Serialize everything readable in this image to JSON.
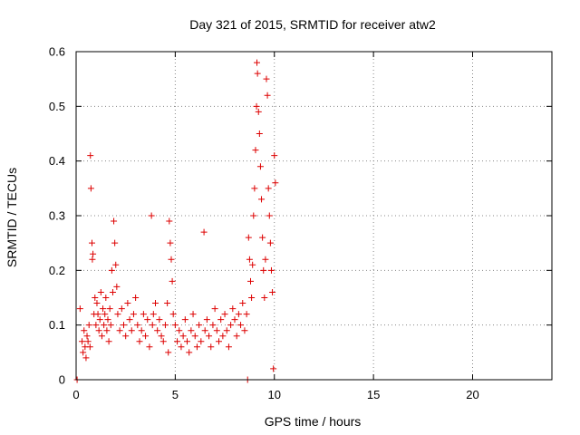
{
  "chart_data": {
    "type": "scatter",
    "title": "Day 321 of 2015, SRMTID for receiver atw2",
    "xlabel": "GPS time / hours",
    "ylabel": "SRMTID / TECUs",
    "xlim": [
      0,
      24
    ],
    "ylim": [
      0,
      0.6
    ],
    "x_ticks": [
      0,
      5,
      10,
      15,
      20
    ],
    "y_ticks": [
      0,
      0.1,
      0.2,
      0.3,
      0.4,
      0.5,
      0.6
    ],
    "x_tick_labels": [
      "0",
      "5",
      "10",
      "15",
      "20"
    ],
    "y_tick_labels": [
      "0",
      "0.1",
      "0.2",
      "0.3",
      "0.4",
      "0.5",
      "0.6"
    ],
    "grid": true,
    "marker": "+",
    "colors": {
      "series": "#dd0000",
      "grid": "#888888",
      "axis": "#000000"
    },
    "series": [
      {
        "name": "SRMTID",
        "points": [
          [
            0.05,
            0.0
          ],
          [
            0.2,
            0.13
          ],
          [
            0.3,
            0.07
          ],
          [
            0.35,
            0.05
          ],
          [
            0.4,
            0.09
          ],
          [
            0.45,
            0.06
          ],
          [
            0.5,
            0.04
          ],
          [
            0.55,
            0.08
          ],
          [
            0.6,
            0.07
          ],
          [
            0.65,
            0.1
          ],
          [
            0.7,
            0.06
          ],
          [
            0.72,
            0.41
          ],
          [
            0.75,
            0.35
          ],
          [
            0.8,
            0.25
          ],
          [
            0.82,
            0.22
          ],
          [
            0.85,
            0.23
          ],
          [
            0.9,
            0.12
          ],
          [
            0.95,
            0.15
          ],
          [
            1.0,
            0.1
          ],
          [
            1.05,
            0.14
          ],
          [
            1.1,
            0.12
          ],
          [
            1.15,
            0.09
          ],
          [
            1.2,
            0.11
          ],
          [
            1.25,
            0.16
          ],
          [
            1.3,
            0.08
          ],
          [
            1.35,
            0.13
          ],
          [
            1.4,
            0.1
          ],
          [
            1.45,
            0.12
          ],
          [
            1.5,
            0.15
          ],
          [
            1.55,
            0.09
          ],
          [
            1.6,
            0.11
          ],
          [
            1.65,
            0.07
          ],
          [
            1.7,
            0.13
          ],
          [
            1.75,
            0.1
          ],
          [
            1.8,
            0.2
          ],
          [
            1.85,
            0.16
          ],
          [
            1.9,
            0.29
          ],
          [
            1.95,
            0.25
          ],
          [
            2.0,
            0.21
          ],
          [
            2.05,
            0.17
          ],
          [
            2.1,
            0.12
          ],
          [
            2.2,
            0.09
          ],
          [
            2.3,
            0.13
          ],
          [
            2.4,
            0.1
          ],
          [
            2.5,
            0.08
          ],
          [
            2.6,
            0.14
          ],
          [
            2.7,
            0.11
          ],
          [
            2.8,
            0.09
          ],
          [
            2.9,
            0.12
          ],
          [
            3.0,
            0.15
          ],
          [
            3.1,
            0.1
          ],
          [
            3.2,
            0.07
          ],
          [
            3.3,
            0.09
          ],
          [
            3.4,
            0.12
          ],
          [
            3.5,
            0.08
          ],
          [
            3.6,
            0.11
          ],
          [
            3.7,
            0.06
          ],
          [
            3.8,
            0.3
          ],
          [
            3.85,
            0.1
          ],
          [
            3.9,
            0.12
          ],
          [
            4.0,
            0.14
          ],
          [
            4.1,
            0.09
          ],
          [
            4.2,
            0.11
          ],
          [
            4.3,
            0.08
          ],
          [
            4.4,
            0.07
          ],
          [
            4.5,
            0.1
          ],
          [
            4.6,
            0.14
          ],
          [
            4.65,
            0.05
          ],
          [
            4.7,
            0.29
          ],
          [
            4.75,
            0.25
          ],
          [
            4.8,
            0.22
          ],
          [
            4.85,
            0.18
          ],
          [
            4.9,
            0.12
          ],
          [
            5.0,
            0.1
          ],
          [
            5.1,
            0.07
          ],
          [
            5.2,
            0.09
          ],
          [
            5.3,
            0.06
          ],
          [
            5.4,
            0.08
          ],
          [
            5.5,
            0.11
          ],
          [
            5.6,
            0.07
          ],
          [
            5.7,
            0.05
          ],
          [
            5.8,
            0.09
          ],
          [
            5.9,
            0.12
          ],
          [
            6.0,
            0.08
          ],
          [
            6.1,
            0.06
          ],
          [
            6.2,
            0.1
          ],
          [
            6.3,
            0.07
          ],
          [
            6.45,
            0.27
          ],
          [
            6.5,
            0.09
          ],
          [
            6.6,
            0.11
          ],
          [
            6.7,
            0.08
          ],
          [
            6.8,
            0.06
          ],
          [
            6.9,
            0.1
          ],
          [
            7.0,
            0.13
          ],
          [
            7.1,
            0.09
          ],
          [
            7.2,
            0.07
          ],
          [
            7.3,
            0.11
          ],
          [
            7.4,
            0.08
          ],
          [
            7.5,
            0.12
          ],
          [
            7.6,
            0.09
          ],
          [
            7.7,
            0.06
          ],
          [
            7.8,
            0.1
          ],
          [
            7.9,
            0.13
          ],
          [
            8.0,
            0.11
          ],
          [
            8.1,
            0.08
          ],
          [
            8.2,
            0.12
          ],
          [
            8.3,
            0.1
          ],
          [
            8.4,
            0.14
          ],
          [
            8.5,
            0.09
          ],
          [
            8.6,
            0.12
          ],
          [
            8.65,
            0.0
          ],
          [
            8.7,
            0.26
          ],
          [
            8.75,
            0.22
          ],
          [
            8.8,
            0.18
          ],
          [
            8.85,
            0.15
          ],
          [
            8.9,
            0.21
          ],
          [
            8.95,
            0.3
          ],
          [
            9.0,
            0.35
          ],
          [
            9.05,
            0.42
          ],
          [
            9.1,
            0.5
          ],
          [
            9.12,
            0.58
          ],
          [
            9.15,
            0.56
          ],
          [
            9.2,
            0.49
          ],
          [
            9.25,
            0.45
          ],
          [
            9.3,
            0.39
          ],
          [
            9.35,
            0.33
          ],
          [
            9.4,
            0.26
          ],
          [
            9.45,
            0.2
          ],
          [
            9.5,
            0.15
          ],
          [
            9.55,
            0.22
          ],
          [
            9.6,
            0.55
          ],
          [
            9.65,
            0.52
          ],
          [
            9.7,
            0.35
          ],
          [
            9.75,
            0.3
          ],
          [
            9.8,
            0.25
          ],
          [
            9.85,
            0.2
          ],
          [
            9.9,
            0.16
          ],
          [
            9.95,
            0.02
          ],
          [
            10.0,
            0.41
          ],
          [
            10.05,
            0.36
          ]
        ]
      }
    ]
  }
}
